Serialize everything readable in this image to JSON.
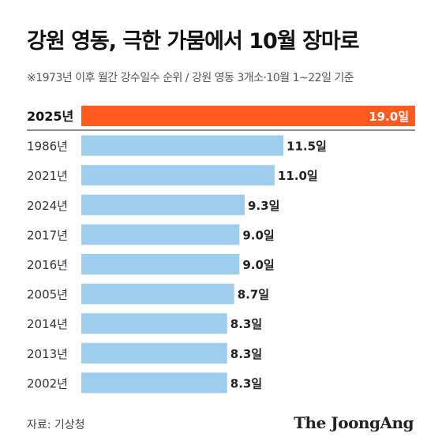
{
  "title": "강원 영동, 극한 가뭄에서 10월 장마로",
  "subtitle": "※1973년 이후 월간 강수일수 순위 / 강원 영동 3개소·10월 1~22일 기준",
  "source": "자료: 기상청",
  "brand": "The JoongAng",
  "colors": {
    "highlight": "#ff5a1f",
    "bar": "#9fcdee",
    "divider": "#222222"
  },
  "chart_data": {
    "type": "bar",
    "orientation": "horizontal",
    "categories": [
      "2025년",
      "1986년",
      "2021년",
      "2024년",
      "2017년",
      "2016년",
      "2005년",
      "2014년",
      "2013년",
      "2002년"
    ],
    "values": [
      19.0,
      11.5,
      11.0,
      9.3,
      9.0,
      9.0,
      8.7,
      8.3,
      8.3,
      8.3
    ],
    "value_labels": [
      "19.0일",
      "11.5일",
      "11.0일",
      "9.3일",
      "9.0일",
      "9.0일",
      "8.7일",
      "8.3일",
      "8.3일",
      "8.3일"
    ],
    "highlight_index": 0,
    "xlim": [
      0,
      19.0
    ]
  }
}
